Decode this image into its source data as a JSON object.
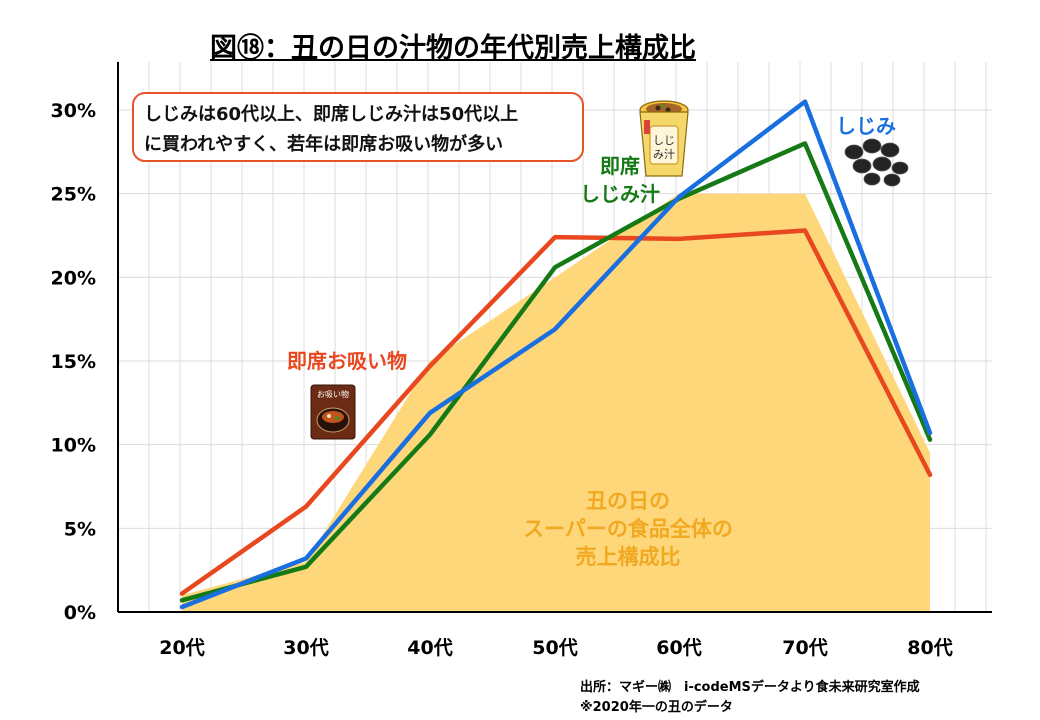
{
  "header": {
    "title": "図⑱：丑の日の汁物の年代別売上構成比"
  },
  "callout": {
    "line1": "しじみは60代以上、即席しじみ汁は50代以上",
    "line2": "に買われやすく、若年は即席お吸い物が多い"
  },
  "footer": {
    "source": "出所：マギー㈱　i-codeMSデータより食未来研究室作成",
    "note": "※2020年一の丑のデータ"
  },
  "icons": {
    "cup": "instant-shijimi-soup-cup-icon",
    "clams": "shijimi-clams-icon",
    "osuimono": "osuimono-package-icon"
  },
  "colors": {
    "shijimi": "#1a6fe0",
    "instant_shijimi": "#157a16",
    "osuimono": "#e8471f",
    "area": "#fdd77a",
    "area_label": "#f2a922"
  },
  "chart_data": {
    "type": "line",
    "title": "図⑱：丑の日の汁物の年代別売上構成比",
    "categories": [
      "20代",
      "30代",
      "40代",
      "50代",
      "60代",
      "70代",
      "80代"
    ],
    "yticks": [
      "0%",
      "5%",
      "10%",
      "15%",
      "20%",
      "25%",
      "30%"
    ],
    "ylim": [
      0,
      30
    ],
    "grid": true,
    "series": [
      {
        "name": "丑の日の\nスーパーの食品全体の\n売上構成比",
        "type": "area",
        "values": [
          1.0,
          3.0,
          15.0,
          20.0,
          25.0,
          25.0,
          9.5
        ]
      },
      {
        "name": "しじみ",
        "values": [
          0.3,
          3.2,
          11.9,
          16.9,
          24.8,
          30.5,
          10.7
        ]
      },
      {
        "name": "即席しじみ汁",
        "label": "即席\nしじみ汁",
        "values": [
          0.7,
          2.7,
          10.6,
          20.6,
          24.7,
          28.0,
          10.3
        ]
      },
      {
        "name": "即席お吸い物",
        "values": [
          1.1,
          6.3,
          14.7,
          22.4,
          22.3,
          22.8,
          8.2
        ]
      }
    ]
  }
}
